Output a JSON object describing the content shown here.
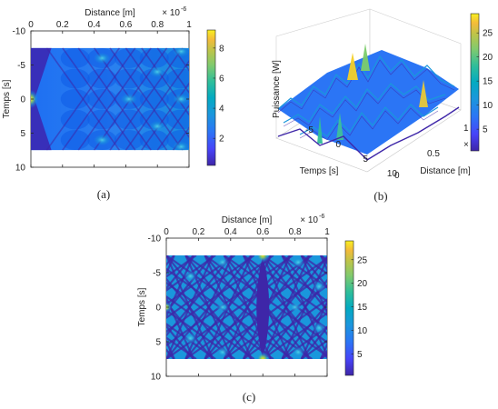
{
  "chart_data": [
    {
      "id": "a",
      "type": "heatmap",
      "caption": "(a)",
      "xlabel": "Distance [m]",
      "ylabel": "Temps [s]",
      "xlim": [
        0,
        1
      ],
      "ylim": [
        -10,
        10
      ],
      "x_exponent_base": "× 10",
      "x_exponent_power": "-6",
      "x_ticks": [
        "0",
        "0.2",
        "0.4",
        "0.6",
        "0.8",
        "1"
      ],
      "x_tick_values": [
        0,
        0.2,
        0.4,
        0.6,
        0.8,
        1
      ],
      "y_ticks": [
        "-10",
        "-5",
        "0",
        "5",
        "10"
      ],
      "y_tick_values": [
        -10,
        -5,
        0,
        5,
        10
      ],
      "data_y_range": [
        -7.5,
        7.5
      ],
      "colorbar": {
        "ticks": [
          "2",
          "4",
          "6",
          "8"
        ],
        "tick_values": [
          2,
          4,
          6,
          8
        ],
        "range": [
          0.2,
          9.2
        ]
      },
      "peak": {
        "x": 0,
        "y": 0,
        "value": 9
      }
    },
    {
      "id": "b",
      "type": "surface",
      "caption": "(b)",
      "zlabel": "Puissance [W]",
      "xlabel": "Distance [m]",
      "ylabel": "Temps [s]",
      "x_ticks": [
        "0",
        "0.5",
        "1"
      ],
      "y_ticks": [
        "-5",
        "0",
        "5",
        "10"
      ],
      "x_exponent_base": "× 1",
      "colorbar": {
        "ticks": [
          "5",
          "10",
          "15",
          "20",
          "25"
        ],
        "tick_values": [
          5,
          10,
          15,
          20,
          25
        ],
        "range": [
          0.5,
          29
        ]
      }
    },
    {
      "id": "c",
      "type": "heatmap",
      "caption": "(c)",
      "xlabel": "Distance [m]",
      "ylabel": "Temps [s]",
      "xlim": [
        0,
        1
      ],
      "ylim": [
        -10,
        10
      ],
      "x_exponent_base": "× 10",
      "x_exponent_power": "-6",
      "x_ticks": [
        "0",
        "0.2",
        "0.4",
        "0.6",
        "0.8",
        "1"
      ],
      "x_tick_values": [
        0,
        0.2,
        0.4,
        0.6,
        0.8,
        1
      ],
      "y_ticks": [
        "-10",
        "-5",
        "0",
        "5",
        "10"
      ],
      "y_tick_values": [
        -10,
        -5,
        0,
        5,
        10
      ],
      "data_y_range": [
        -7.5,
        7.5
      ],
      "colorbar": {
        "ticks": [
          "5",
          "10",
          "15",
          "20",
          "25"
        ],
        "tick_values": [
          5,
          10,
          15,
          20,
          25
        ],
        "range": [
          0.5,
          29
        ]
      },
      "peaks": [
        {
          "x": 0.6,
          "y": -7.5,
          "value": 26
        },
        {
          "x": 0.6,
          "y": 7.5,
          "value": 26
        },
        {
          "x": 0,
          "y": 0,
          "value": 15
        }
      ]
    }
  ],
  "colors": {
    "colormap": [
      "#3e26a8",
      "#4743f8",
      "#2b75f5",
      "#1a97dc",
      "#03aac1",
      "#2fbe9a",
      "#80ca6e",
      "#bec449",
      "#f4bb3a",
      "#f8e020"
    ]
  }
}
